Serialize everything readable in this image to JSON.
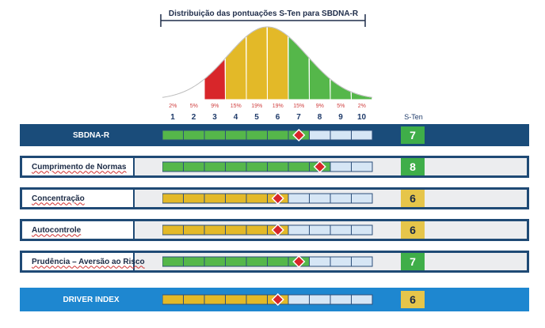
{
  "chart_title": "Distribuição das pontuações S-Ten para SBDNA-R",
  "scale_ticks": [
    "1",
    "2",
    "3",
    "4",
    "5",
    "6",
    "7",
    "8",
    "9",
    "10"
  ],
  "percentages": [
    "2%",
    "5%",
    "9%",
    "15%",
    "19%",
    "19%",
    "15%",
    "9%",
    "5%",
    "2%"
  ],
  "sten_header": "S-Ten",
  "colors": {
    "red": "#d8262a",
    "yellow": "#e3b928",
    "green": "#55b74a",
    "dark_blue": "#1a4c7a",
    "light_blue": "#1e87d0",
    "diamond": "#d8262a",
    "empty_track": "#d6e6f5"
  },
  "rows": [
    {
      "label": "SBDNA-R",
      "score": "7",
      "style": "header",
      "bar_color": "green"
    },
    {
      "label": "Cumprimento de Normas",
      "score": "8",
      "style": "box",
      "bar_color": "green"
    },
    {
      "label": "Concentração",
      "score": "6",
      "style": "box",
      "bar_color": "yellow"
    },
    {
      "label": "Autocontrole",
      "score": "6",
      "style": "box",
      "bar_color": "yellow"
    },
    {
      "label": "Prudência – Aversão ao Risco",
      "score": "7",
      "style": "box",
      "bar_color": "green"
    },
    {
      "label": "DRIVER INDEX",
      "score": "6",
      "style": "footer",
      "bar_color": "yellow"
    }
  ],
  "chart_data": {
    "type": "area",
    "title": "Distribuição das pontuações S-Ten para SBDNA-R",
    "categories": [
      "1",
      "2",
      "3",
      "4",
      "5",
      "6",
      "7",
      "8",
      "9",
      "10"
    ],
    "values": [
      2,
      5,
      9,
      15,
      19,
      19,
      15,
      9,
      5,
      2
    ],
    "unit": "%"
  }
}
